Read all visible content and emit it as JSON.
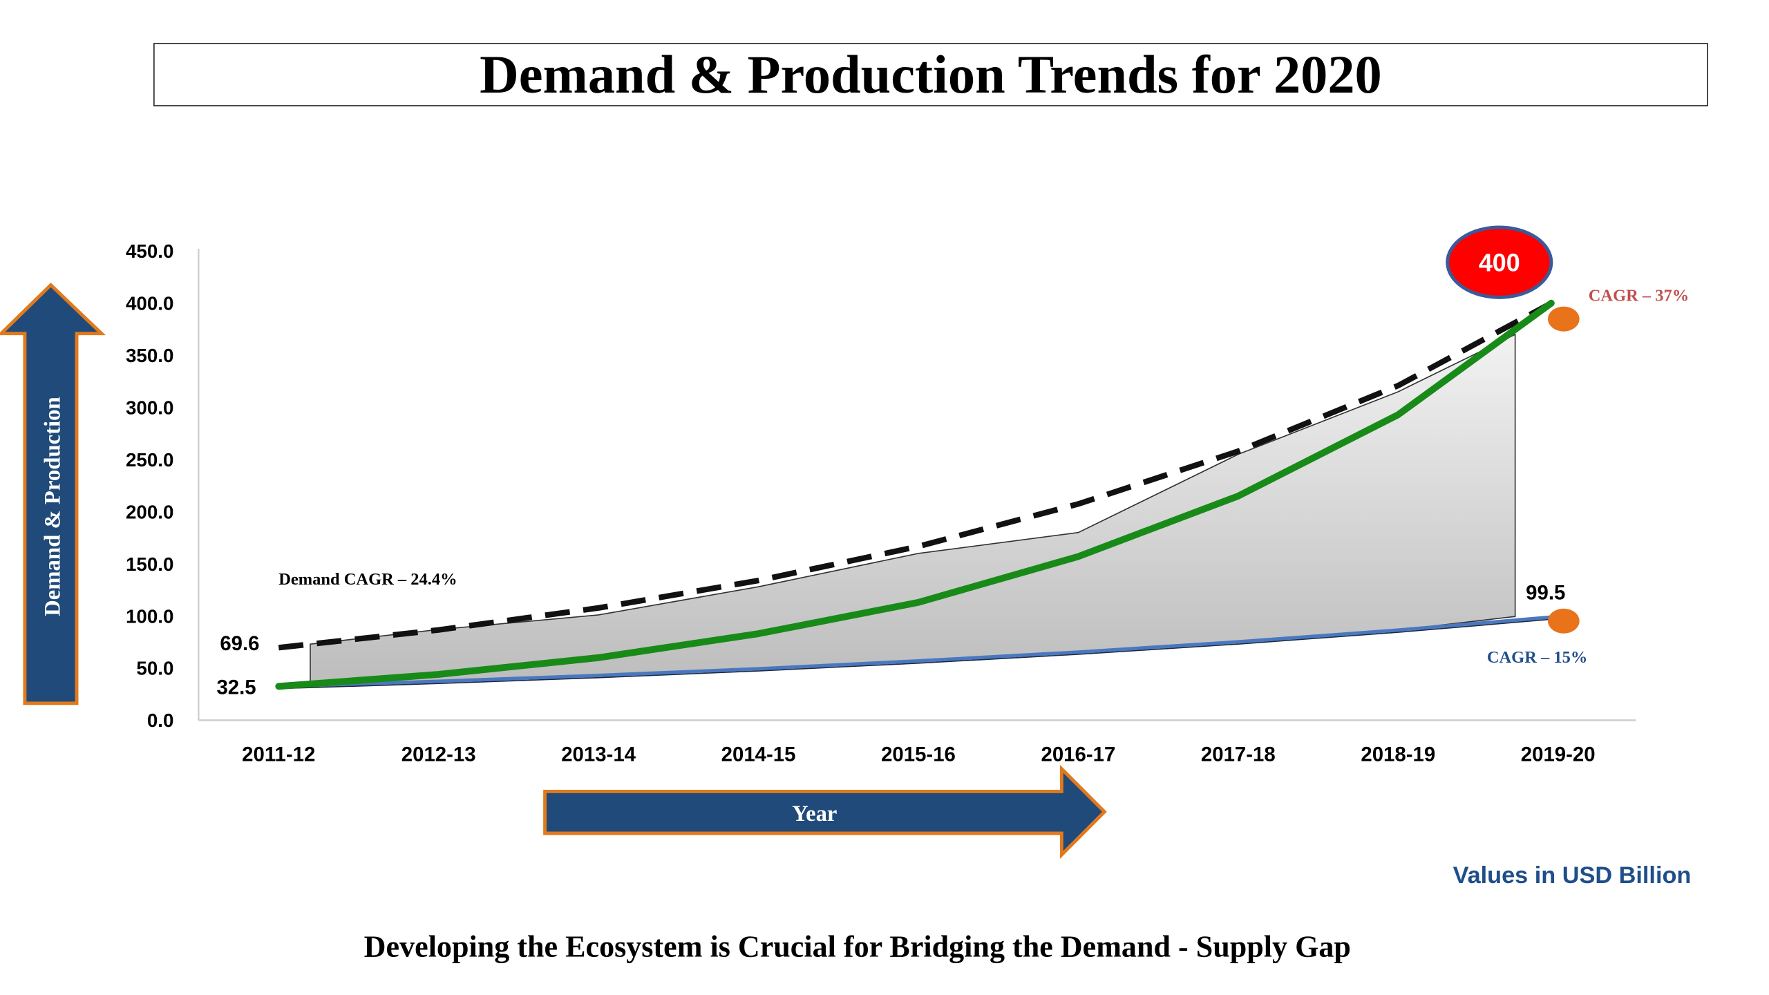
{
  "page": {
    "title": "Demand & Production Trends for 2020",
    "footer": "Developing the Ecosystem is Crucial for Bridging the Demand - Supply Gap",
    "units_note": "Values in USD Billion"
  },
  "chart_data": {
    "type": "line",
    "title": "Demand & Production Trends for 2020",
    "xlabel": "Year",
    "ylabel": "Demand & Production",
    "ylim": [
      0,
      450
    ],
    "yticks": [
      0,
      50,
      100,
      150,
      200,
      250,
      300,
      350,
      400,
      450
    ],
    "ytick_labels": [
      "0.0",
      "50.0",
      "100.0",
      "150.0",
      "200.0",
      "250.0",
      "300.0",
      "350.0",
      "400.0",
      "450.0"
    ],
    "categories": [
      "2011-12",
      "2012-13",
      "2013-14",
      "2014-15",
      "2015-16",
      "2016-17",
      "2017-18",
      "2018-19",
      "2019-20"
    ],
    "grid": false,
    "series": [
      {
        "key": "demand_trend",
        "style": "dashed-black",
        "values": [
          69.6,
          86.6,
          107.7,
          134.0,
          166.7,
          207.4,
          258.0,
          320.9,
          400.0
        ]
      },
      {
        "key": "gap_upper",
        "style": "thin-dark",
        "values": [
          73,
          87,
          101,
          128,
          160,
          180,
          255,
          315,
          370
        ]
      },
      {
        "key": "green_line",
        "style": "solid-green",
        "values": [
          32.5,
          44,
          60,
          83,
          113,
          157,
          215,
          293,
          400
        ]
      },
      {
        "key": "production",
        "style": "thin-blue",
        "values": [
          32.5,
          37.4,
          43.0,
          49.4,
          56.9,
          65.4,
          75.2,
          86.5,
          99.5
        ]
      }
    ],
    "data_labels": [
      {
        "text": "69.6",
        "category": "2011-12",
        "value": 69.6
      },
      {
        "text": "32.5",
        "category": "2011-12",
        "value": 32.5
      },
      {
        "text": "99.5",
        "category": "2019-20",
        "value": 99.5
      }
    ],
    "annotations": {
      "demand_cagr": "Demand CAGR – 24.4%",
      "cagr_top": "CAGR – 37%",
      "cagr_bottom": "CAGR – 15%",
      "bubble": "400"
    },
    "colors": {
      "green": "#188a18",
      "dashed": "#111111",
      "production": "#4a78c0",
      "fill": "#d9d9d9",
      "arrow_fill": "#1f4a7a",
      "arrow_border": "#e07a1c",
      "marker": "#e8731a",
      "bubble": "#ff0000",
      "bubble_border": "#3a5a9a",
      "cagr_top_text": "#c0504d",
      "cagr_bottom_text": "#1f4e8a",
      "units_text": "#1f4e8a"
    }
  }
}
